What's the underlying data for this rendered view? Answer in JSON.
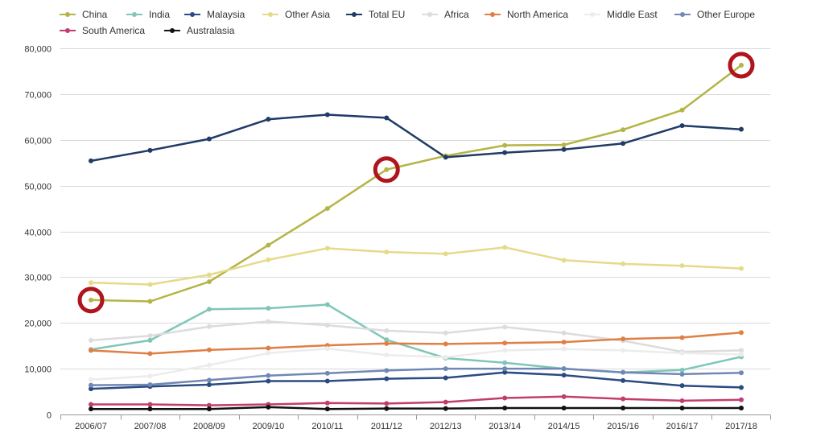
{
  "chart_data": {
    "type": "line",
    "title": "",
    "xlabel": "",
    "ylabel": "",
    "ylim": [
      0,
      80000
    ],
    "yticks": [
      0,
      10000,
      20000,
      30000,
      40000,
      50000,
      60000,
      70000,
      80000
    ],
    "ytick_labels": [
      "0",
      "10,000",
      "20,000",
      "30,000",
      "40,000",
      "50,000",
      "60,000",
      "70,000",
      "80,000"
    ],
    "grid": true,
    "legend_position": "top-left",
    "categories": [
      "2006/07",
      "2007/08",
      "2008/09",
      "2009/10",
      "2010/11",
      "2011/12",
      "2012/13",
      "2013/14",
      "2014/15",
      "2015/16",
      "2016/17",
      "2017/18"
    ],
    "series": [
      {
        "name": "China",
        "color": "#b5b446",
        "values": [
          25000,
          24700,
          29000,
          37000,
          45000,
          53500,
          56500,
          58800,
          58900,
          62200,
          66500,
          76300
        ]
      },
      {
        "name": "India",
        "color": "#7fc6b8",
        "values": [
          14200,
          16200,
          23000,
          23200,
          24000,
          16300,
          12300,
          11300,
          10000,
          9200,
          9700,
          12600
        ]
      },
      {
        "name": "Malaysia",
        "color": "#2b4b82",
        "values": [
          5600,
          6100,
          6500,
          7300,
          7300,
          7800,
          8000,
          9200,
          8600,
          7400,
          6300,
          5900
        ]
      },
      {
        "name": "Other Asia",
        "color": "#e6da8a",
        "values": [
          28800,
          28400,
          30500,
          33800,
          36300,
          35500,
          35100,
          36500,
          33700,
          32900,
          32500,
          31900
        ]
      },
      {
        "name": "Total EU",
        "color": "#1f3b66",
        "values": [
          55400,
          57700,
          60200,
          64500,
          65500,
          64800,
          56200,
          57200,
          57900,
          59200,
          63100,
          62300
        ]
      },
      {
        "name": "Africa",
        "color": "#dcdcdc",
        "values": [
          16200,
          17200,
          19200,
          20300,
          19500,
          18300,
          17800,
          19100,
          17800,
          16100,
          13700,
          14000
        ]
      },
      {
        "name": "North America",
        "color": "#e07f45",
        "values": [
          14000,
          13300,
          14100,
          14500,
          15100,
          15500,
          15400,
          15600,
          15800,
          16500,
          16800,
          17900
        ]
      },
      {
        "name": "Middle East",
        "color": "#ececec",
        "values": [
          7600,
          8400,
          10800,
          13400,
          14400,
          13000,
          12500,
          14000,
          14300,
          14000,
          13400,
          13100
        ]
      },
      {
        "name": "Other Europe",
        "color": "#7088b4",
        "values": [
          6400,
          6500,
          7500,
          8500,
          9000,
          9600,
          10000,
          10000,
          10000,
          9200,
          8800,
          9100
        ]
      },
      {
        "name": "South America",
        "color": "#c23d6e",
        "values": [
          2200,
          2200,
          2000,
          2200,
          2500,
          2400,
          2700,
          3600,
          3900,
          3400,
          3000,
          3200
        ]
      },
      {
        "name": "Australasia",
        "color": "#111111",
        "values": [
          1200,
          1200,
          1200,
          1600,
          1200,
          1300,
          1300,
          1400,
          1400,
          1400,
          1400,
          1400
        ]
      }
    ],
    "annotations": [
      {
        "type": "circle-marker",
        "series": "China",
        "category": "2006/07",
        "value": 25000,
        "color": "#b0141c"
      },
      {
        "type": "circle-marker",
        "series": "China",
        "category": "2011/12",
        "value": 53500,
        "color": "#b0141c"
      },
      {
        "type": "circle-marker",
        "series": "China",
        "category": "2017/18",
        "value": 76300,
        "color": "#b0141c"
      }
    ]
  }
}
